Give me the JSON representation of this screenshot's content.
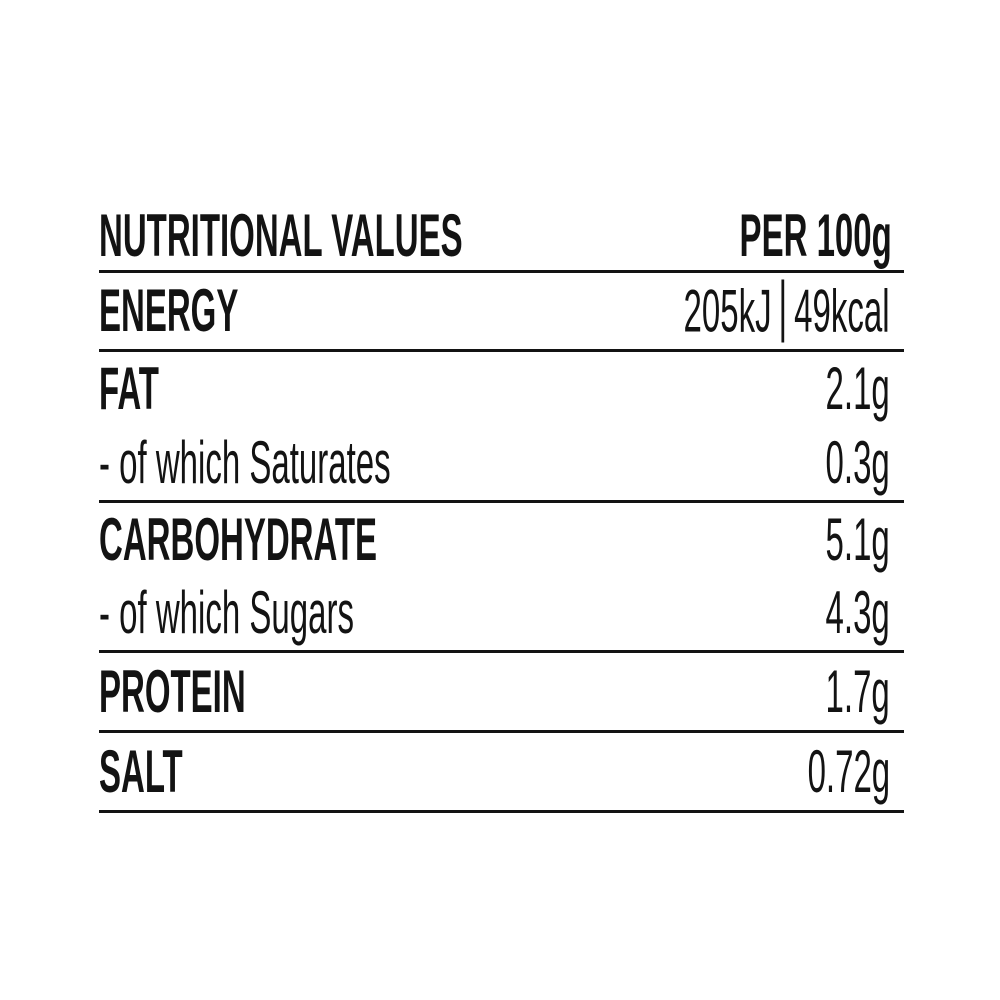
{
  "colors": {
    "text": "#131313",
    "divider": "#131313",
    "background": "#ffffff"
  },
  "table": {
    "title": "NUTRITIONAL VALUES",
    "unit_header": "PER 100g",
    "energy": {
      "label": "ENERGY",
      "kilojoules": "205kJ",
      "kilocalories": "49kcal"
    },
    "rows": [
      {
        "label": "FAT",
        "value": "2.1g"
      },
      {
        "label": "- of which Saturates",
        "value": "0.3g"
      },
      {
        "label": "CARBOHYDRATE",
        "value": "5.1g"
      },
      {
        "label": "- of which Sugars",
        "value": "4.3g"
      },
      {
        "label": "PROTEIN",
        "value": "1.7g"
      },
      {
        "label": "SALT",
        "value": "0.72g"
      }
    ]
  }
}
